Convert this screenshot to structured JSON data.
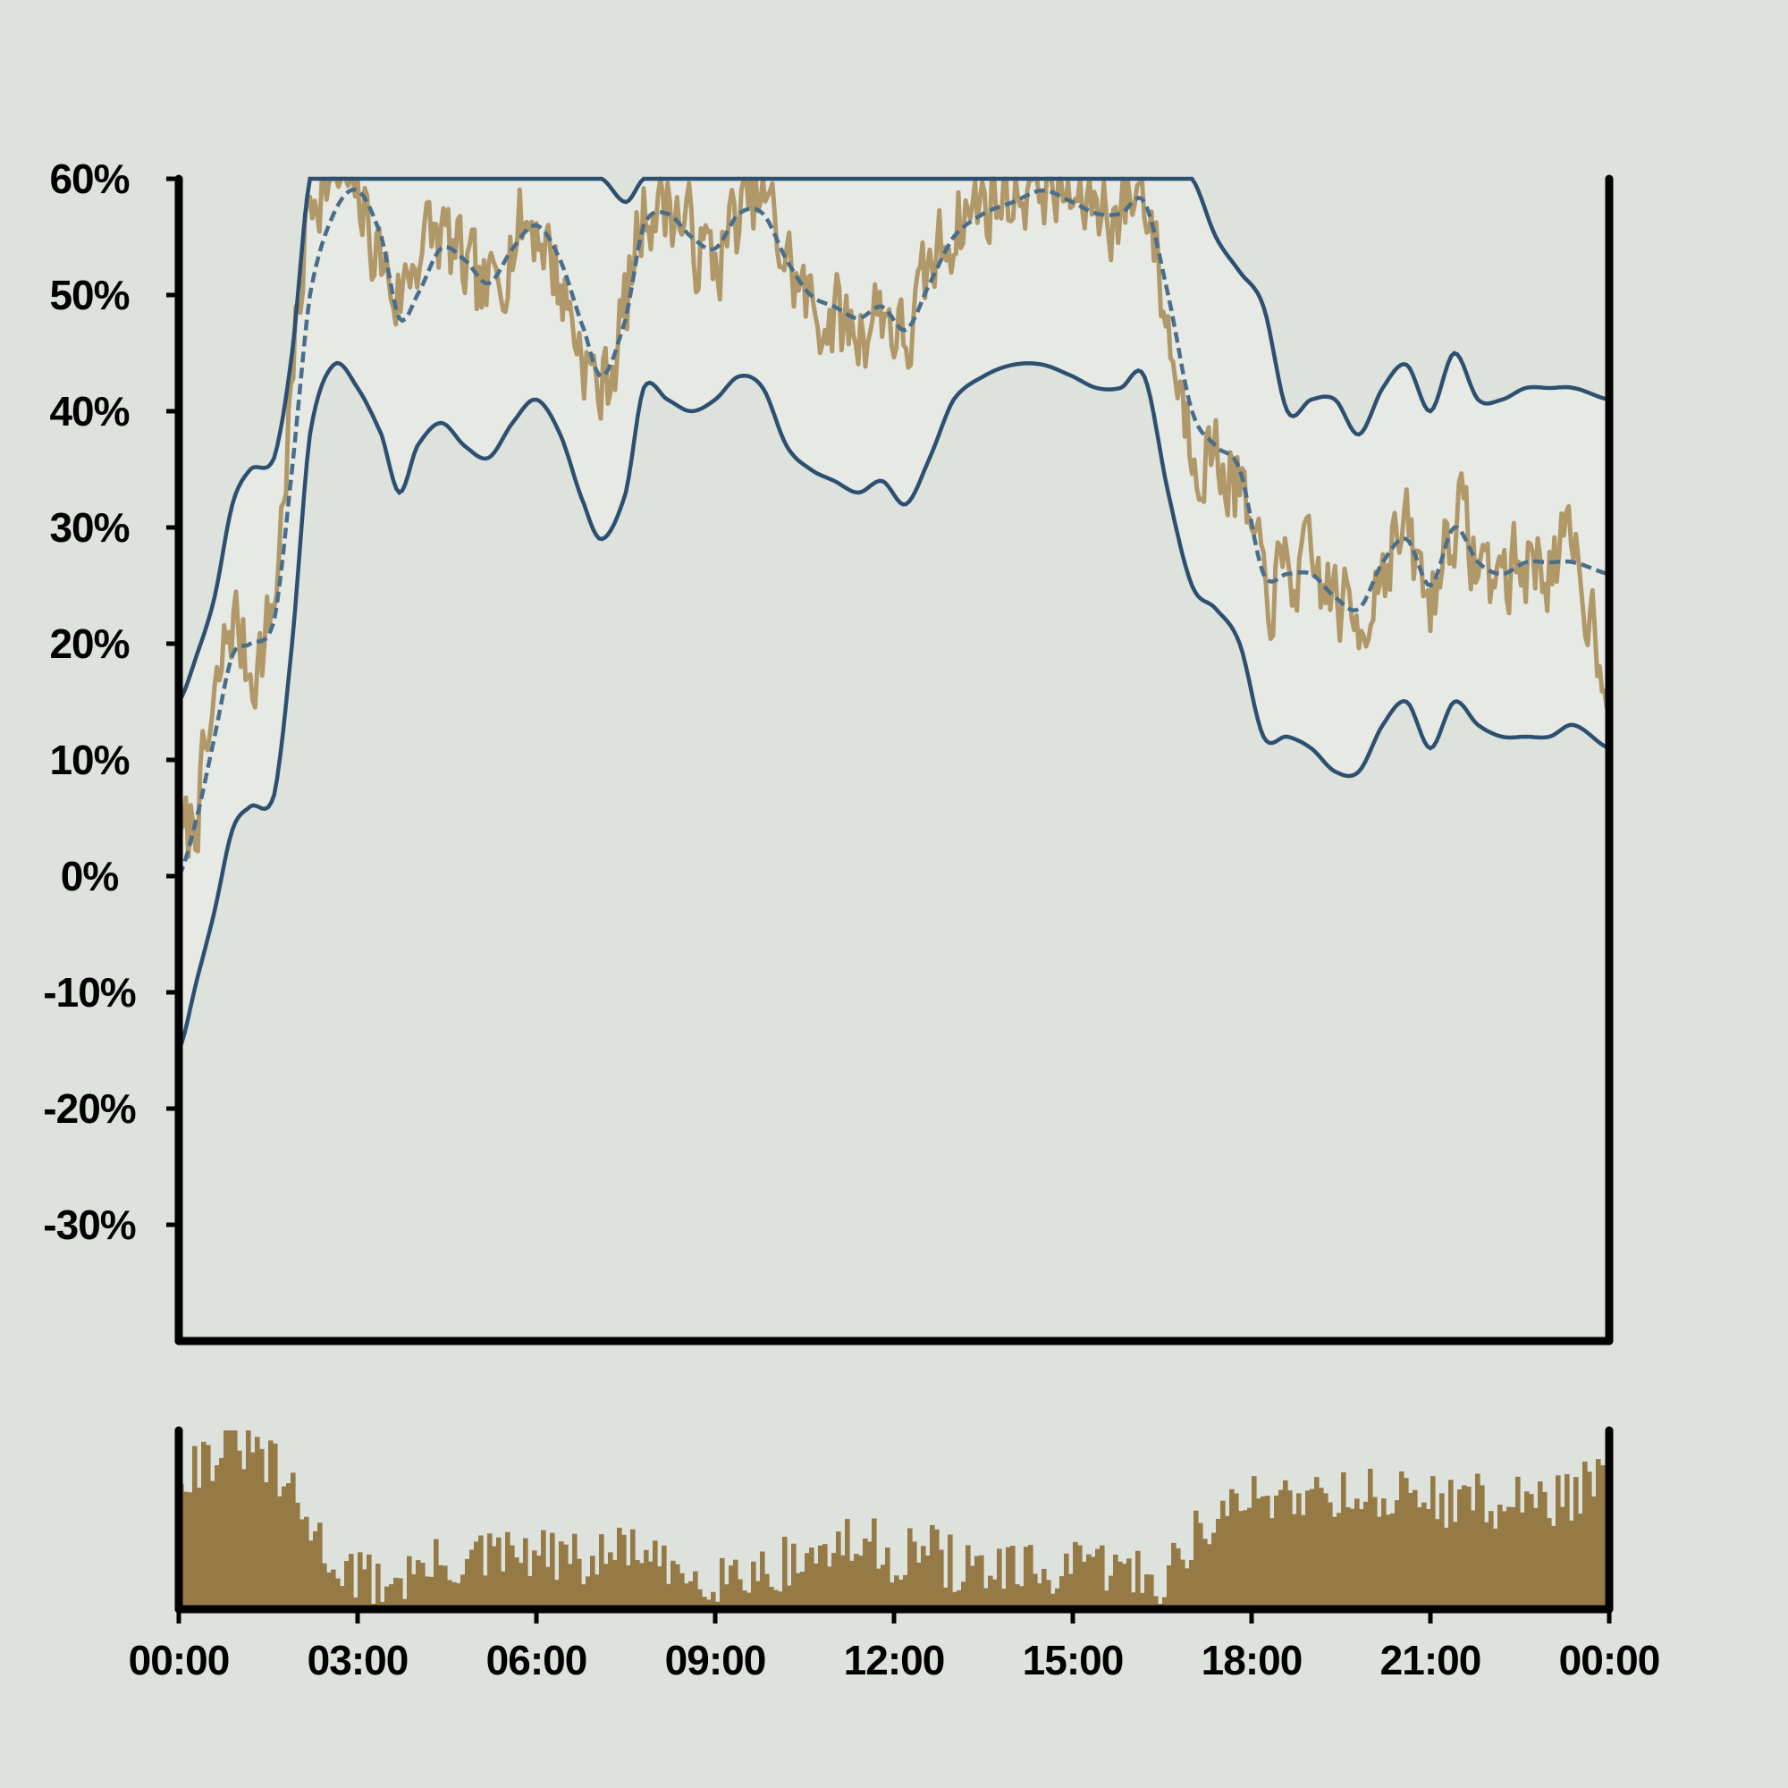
{
  "colors": {
    "background": "#dde2dc",
    "band_fill": "#e6e9e4",
    "band_line": "#2e5070",
    "trend_line": "#4a6e8a",
    "raw_line": "#b09868",
    "volume_bar": "#957a45",
    "axis": "#000000"
  },
  "chart_data": {
    "type": "line",
    "x_range": [
      "00:00",
      "24:00"
    ],
    "ylim": [
      -40,
      60
    ],
    "grid": false,
    "legend": "none",
    "y_ticks": [
      {
        "value": 60,
        "label": "60%"
      },
      {
        "value": 50,
        "label": "50%"
      },
      {
        "value": 40,
        "label": "40%"
      },
      {
        "value": 30,
        "label": "30%"
      },
      {
        "value": 20,
        "label": "20%"
      },
      {
        "value": 10,
        "label": "10%"
      },
      {
        "value": 0,
        "label": "0%"
      },
      {
        "value": -10,
        "label": "-10%"
      },
      {
        "value": -20,
        "label": "-20%"
      },
      {
        "value": -30,
        "label": "-30%"
      }
    ],
    "x_ticks": [
      {
        "value": 0,
        "label": "00:00"
      },
      {
        "value": 3,
        "label": "03:00"
      },
      {
        "value": 6,
        "label": "06:00"
      },
      {
        "value": 9,
        "label": "09:00"
      },
      {
        "value": 12,
        "label": "12:00"
      },
      {
        "value": 15,
        "label": "15:00"
      },
      {
        "value": 18,
        "label": "18:00"
      },
      {
        "value": 21,
        "label": "21:00"
      },
      {
        "value": 24,
        "label": "00:00"
      }
    ],
    "trend_hours": [
      0,
      0.3,
      0.6,
      0.9,
      1.2,
      1.6,
      1.9,
      2.2,
      2.6,
      3.0,
      3.4,
      3.7,
      4.0,
      4.4,
      4.8,
      5.2,
      5.6,
      6.0,
      6.4,
      6.8,
      7.1,
      7.5,
      7.8,
      8.2,
      8.6,
      9.0,
      9.4,
      9.8,
      10.2,
      10.6,
      11.0,
      11.4,
      11.8,
      12.2,
      12.6,
      13.0,
      13.5,
      14.0,
      14.5,
      15.0,
      15.4,
      15.8,
      16.2,
      16.6,
      17.0,
      17.4,
      17.8,
      18.2,
      18.6,
      19.0,
      19.4,
      19.8,
      20.2,
      20.6,
      21.0,
      21.4,
      21.8,
      22.2,
      22.6,
      23.0,
      23.4,
      24.0
    ],
    "series": [
      {
        "style": "band-upper",
        "values": [
          15,
          19,
          24,
          32,
          35,
          36,
          45,
          60,
          60,
          60,
          60,
          60,
          60,
          60,
          60,
          60,
          60,
          60,
          60,
          60,
          60,
          58,
          60,
          60,
          60,
          60,
          60,
          60,
          60,
          60,
          60,
          60,
          60,
          60,
          60,
          60,
          60,
          60,
          60,
          60,
          60,
          60,
          60,
          60,
          60,
          55,
          52,
          49,
          40,
          41,
          41,
          38,
          42,
          44,
          40,
          45,
          41,
          41,
          42,
          42,
          42,
          41
        ]
      },
      {
        "style": "trend-dashed",
        "values": [
          0,
          5,
          12,
          19,
          20,
          22,
          35,
          50,
          57,
          59,
          55,
          48,
          50,
          54,
          53,
          51,
          54,
          56,
          53,
          47,
          43,
          48,
          56,
          57,
          55,
          54,
          57,
          57,
          53,
          50,
          49,
          48,
          49,
          47,
          51,
          55,
          57,
          58,
          59,
          58,
          57,
          57,
          58,
          50,
          40,
          37,
          35,
          26,
          26,
          26,
          24,
          23,
          27,
          29,
          25,
          30,
          27,
          26,
          27,
          27,
          27,
          26
        ]
      },
      {
        "style": "band-lower",
        "values": [
          -15,
          -9,
          -3,
          4,
          6,
          7,
          20,
          38,
          44,
          42,
          38,
          33,
          37,
          39,
          37,
          36,
          39,
          41,
          38,
          32,
          29,
          33,
          42,
          41,
          40,
          41,
          43,
          42,
          37,
          35,
          34,
          33,
          34,
          32,
          36,
          41,
          43,
          44,
          44,
          43,
          42,
          42,
          43,
          33,
          25,
          23,
          20,
          12,
          12,
          11,
          9,
          9,
          13,
          15,
          11,
          15,
          13,
          12,
          12,
          12,
          13,
          11
        ]
      },
      {
        "style": "raw-noisy",
        "seed": 7,
        "noise_amplitude": 4,
        "offset_from": "trend-dashed",
        "values": [
          2,
          6,
          14,
          22,
          18,
          24,
          42,
          58,
          60,
          58,
          53,
          50,
          54,
          55,
          52,
          50,
          55,
          56,
          51,
          45,
          42,
          49,
          57,
          58,
          55,
          53,
          57,
          58,
          53,
          49,
          48,
          47,
          49,
          46,
          52,
          56,
          58,
          59,
          60,
          58,
          58,
          57,
          59,
          47,
          38,
          36,
          33,
          25,
          26,
          26,
          24,
          22,
          27,
          29,
          24,
          31,
          27,
          26,
          27,
          27,
          27,
          18
        ]
      }
    ],
    "volume": {
      "hours": [
        0,
        0.5,
        1.0,
        1.5,
        2.0,
        2.5,
        3.0,
        3.5,
        4.0,
        5.0,
        6.0,
        7.0,
        7.5,
        8.0,
        9.0,
        10.0,
        11.0,
        11.5,
        12.0,
        12.5,
        13.0,
        14.0,
        15.0,
        15.5,
        16.0,
        16.5,
        17.0,
        17.5,
        18.0,
        19.0,
        20.0,
        21.0,
        22.0,
        23.0,
        24.0
      ],
      "values": [
        0.78,
        0.86,
        0.92,
        0.8,
        0.55,
        0.3,
        0.18,
        0.16,
        0.22,
        0.28,
        0.3,
        0.26,
        0.36,
        0.22,
        0.2,
        0.24,
        0.34,
        0.36,
        0.3,
        0.34,
        0.24,
        0.2,
        0.22,
        0.24,
        0.2,
        0.18,
        0.42,
        0.52,
        0.62,
        0.66,
        0.64,
        0.62,
        0.6,
        0.62,
        0.72
      ],
      "bar_count": 320,
      "noise_amplitude": 0.16
    }
  }
}
